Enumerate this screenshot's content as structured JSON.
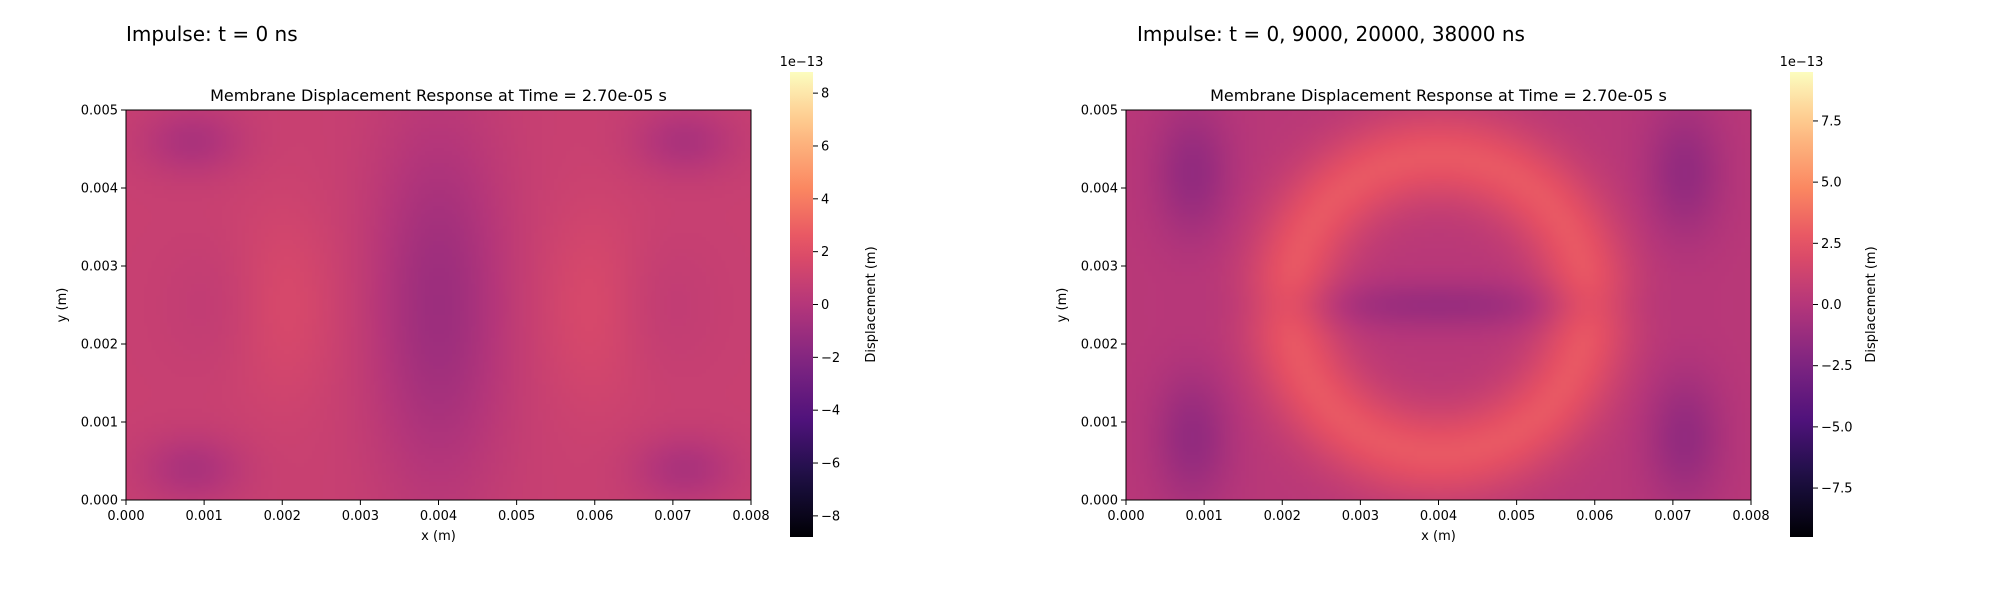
{
  "panels": [
    {
      "suptitle": "Impulse: t = 0 ns",
      "colormap": "magma",
      "chart_data": {
        "type": "heatmap",
        "title": "Membrane Displacement Response at Time = 2.70e-05 s",
        "xlabel": "x (m)",
        "ylabel": "y (m)",
        "xlim": [
          0,
          0.008
        ],
        "ylim": [
          0,
          0.005
        ],
        "xticks": [
          "0.000",
          "0.001",
          "0.002",
          "0.003",
          "0.004",
          "0.005",
          "0.006",
          "0.007",
          "0.008"
        ],
        "yticks": [
          "0.000",
          "0.001",
          "0.002",
          "0.003",
          "0.004",
          "0.005"
        ],
        "colorbar": {
          "label": "Displacement (m)",
          "offset_label": "1e−13",
          "vmin": -8.8,
          "vmax": 8.8,
          "ticks": [
            -8,
            -6,
            -4,
            -2,
            0,
            2,
            4,
            6,
            8
          ],
          "tick_labels": [
            "−8",
            "−6",
            "−4",
            "−2",
            "0",
            "2",
            "4",
            "6",
            "8"
          ]
        },
        "base_value": 0.9,
        "features": [
          {
            "kind": "spot",
            "cx": 0.004,
            "cy": 0.0025,
            "sx": 0.0006,
            "sy": 0.0017,
            "amp": -1.9
          },
          {
            "kind": "spot",
            "cx": 0.00085,
            "cy": 0.0046,
            "sx": 0.00045,
            "sy": 0.0003,
            "amp": -1.3
          },
          {
            "kind": "spot",
            "cx": 0.00715,
            "cy": 0.0046,
            "sx": 0.00045,
            "sy": 0.0003,
            "amp": -1.3
          },
          {
            "kind": "spot",
            "cx": 0.00085,
            "cy": 0.0004,
            "sx": 0.00045,
            "sy": 0.0003,
            "amp": -1.3
          },
          {
            "kind": "spot",
            "cx": 0.00715,
            "cy": 0.0004,
            "sx": 0.00045,
            "sy": 0.0003,
            "amp": -1.3
          },
          {
            "kind": "spot",
            "cx": 0.002,
            "cy": 0.0025,
            "sx": 0.0005,
            "sy": 0.0009,
            "amp": 0.8
          },
          {
            "kind": "spot",
            "cx": 0.006,
            "cy": 0.0025,
            "sx": 0.0005,
            "sy": 0.0009,
            "amp": 0.8
          },
          {
            "kind": "spot",
            "cx": 0.0012,
            "cy": 0.0025,
            "sx": 0.0005,
            "sy": 0.0006,
            "amp": -0.4
          },
          {
            "kind": "spot",
            "cx": 0.0068,
            "cy": 0.0025,
            "sx": 0.0005,
            "sy": 0.0006,
            "amp": -0.4
          }
        ]
      }
    },
    {
      "suptitle": "Impulse: t = 0, 9000, 20000, 38000 ns",
      "colormap": "magma",
      "chart_data": {
        "type": "heatmap",
        "title": "Membrane Displacement Response at Time = 2.70e-05 s",
        "xlabel": "x (m)",
        "ylabel": "y (m)",
        "xlim": [
          0,
          0.008
        ],
        "ylim": [
          0,
          0.005
        ],
        "xticks": [
          "0.000",
          "0.001",
          "0.002",
          "0.003",
          "0.004",
          "0.005",
          "0.006",
          "0.007",
          "0.008"
        ],
        "yticks": [
          "0.000",
          "0.001",
          "0.002",
          "0.003",
          "0.004",
          "0.005"
        ],
        "colorbar": {
          "label": "Displacement (m)",
          "offset_label": "1e−13",
          "vmin": -9.5,
          "vmax": 9.5,
          "ticks": [
            -7.5,
            -5.0,
            -2.5,
            0.0,
            2.5,
            5.0,
            7.5
          ],
          "tick_labels": [
            "−7.5",
            "−5.0",
            "−2.5",
            "0.0",
            "2.5",
            "5.0",
            "7.5"
          ]
        },
        "base_value": 0.2,
        "features": [
          {
            "kind": "ring",
            "cx": 0.004,
            "cy": 0.0025,
            "r": 0.0019,
            "w": 0.00042,
            "amp": 2.6
          },
          {
            "kind": "spot",
            "cx": 0.004,
            "cy": 0.0025,
            "sx": 0.0013,
            "sy": 0.00022,
            "amp": -1.4
          },
          {
            "kind": "spot",
            "cx": 0.00085,
            "cy": 0.0042,
            "sx": 0.00035,
            "sy": 0.0006,
            "amp": -1.7
          },
          {
            "kind": "spot",
            "cx": 0.00715,
            "cy": 0.0042,
            "sx": 0.00035,
            "sy": 0.0006,
            "amp": -1.7
          },
          {
            "kind": "spot",
            "cx": 0.00085,
            "cy": 0.0008,
            "sx": 0.00035,
            "sy": 0.0006,
            "amp": -1.7
          },
          {
            "kind": "spot",
            "cx": 0.00715,
            "cy": 0.0008,
            "sx": 0.00035,
            "sy": 0.0006,
            "amp": -1.7
          }
        ]
      }
    }
  ]
}
